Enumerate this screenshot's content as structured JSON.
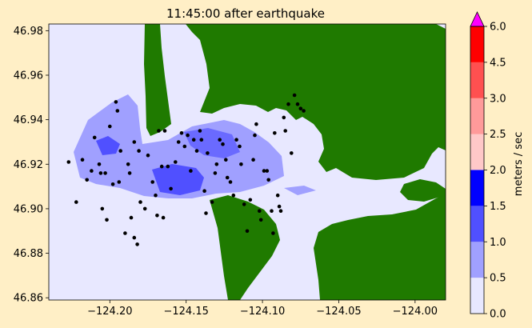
{
  "title": "11:45:00 after earthquake",
  "chart_data": {
    "type": "heatmap",
    "title": "11:45:00 after earthquake",
    "xlabel": "",
    "ylabel": "",
    "xlim": [
      -124.24,
      -123.98
    ],
    "ylim": [
      46.859,
      46.983
    ],
    "x_ticks": [
      -124.2,
      -124.15,
      -124.1,
      -124.05,
      -124.0
    ],
    "x_tick_labels": [
      "−124.20",
      "−124.15",
      "−124.10",
      "−124.05",
      "−124.00"
    ],
    "y_ticks": [
      46.86,
      46.88,
      46.9,
      46.92,
      46.94,
      46.96,
      46.98
    ],
    "y_tick_labels": [
      "46.86",
      "46.88",
      "46.90",
      "46.92",
      "46.94",
      "46.96",
      "46.98"
    ],
    "colorbar": {
      "label": "meters / sec",
      "levels": [
        0.0,
        0.5,
        1.0,
        1.5,
        2.0,
        2.5,
        3.0,
        4.5,
        6.0
      ],
      "level_labels": [
        "0.0",
        "0.5",
        "1.0",
        "1.5",
        "2.0",
        "2.5",
        "3.0",
        "4.5",
        "6.0"
      ],
      "colors": [
        "#e8e8ff",
        "#a0a0ff",
        "#5050ff",
        "#0000ff",
        "#ffc8c8",
        "#ff9a9a",
        "#ff5050",
        "#ff0000"
      ],
      "extend_color": "#ff00ff"
    },
    "land_color": "#1f7a00",
    "water_color": "#e8e8ff",
    "gauges_lonlat": [
      [
        -124.227,
        46.921
      ],
      [
        -124.222,
        46.903
      ],
      [
        -124.218,
        46.922
      ],
      [
        -124.215,
        46.913
      ],
      [
        -124.212,
        46.917
      ],
      [
        -124.21,
        46.932
      ],
      [
        -124.207,
        46.92
      ],
      [
        -124.206,
        46.916
      ],
      [
        -124.203,
        46.916
      ],
      [
        -124.205,
        46.9
      ],
      [
        -124.202,
        46.895
      ],
      [
        -124.2,
        46.937
      ],
      [
        -124.198,
        46.911
      ],
      [
        -124.196,
        46.948
      ],
      [
        -124.195,
        46.944
      ],
      [
        -124.194,
        46.912
      ],
      [
        -124.193,
        46.926
      ],
      [
        -124.19,
        46.889
      ],
      [
        -124.188,
        46.92
      ],
      [
        -124.187,
        46.916
      ],
      [
        -124.186,
        46.896
      ],
      [
        -124.184,
        46.887
      ],
      [
        -124.182,
        46.884
      ],
      [
        -124.184,
        46.93
      ],
      [
        -124.181,
        46.926
      ],
      [
        -124.18,
        46.903
      ],
      [
        -124.177,
        46.9
      ],
      [
        -124.175,
        46.924
      ],
      [
        -124.172,
        46.912
      ],
      [
        -124.17,
        46.906
      ],
      [
        -124.169,
        46.897
      ],
      [
        -124.168,
        46.935
      ],
      [
        -124.166,
        46.919
      ],
      [
        -124.165,
        46.896
      ],
      [
        -124.164,
        46.935
      ],
      [
        -124.162,
        46.919
      ],
      [
        -124.16,
        46.909
      ],
      [
        -124.157,
        46.921
      ],
      [
        -124.155,
        46.93
      ],
      [
        -124.153,
        46.934
      ],
      [
        -124.151,
        46.928
      ],
      [
        -124.149,
        46.933
      ],
      [
        -124.147,
        46.917
      ],
      [
        -124.145,
        46.931
      ],
      [
        -124.143,
        46.926
      ],
      [
        -124.141,
        46.935
      ],
      [
        -124.14,
        46.931
      ],
      [
        -124.138,
        46.908
      ],
      [
        -124.137,
        46.898
      ],
      [
        -124.136,
        46.925
      ],
      [
        -124.133,
        46.903
      ],
      [
        -124.131,
        46.916
      ],
      [
        -124.13,
        46.92
      ],
      [
        -124.128,
        46.931
      ],
      [
        -124.126,
        46.929
      ],
      [
        -124.124,
        46.922
      ],
      [
        -124.123,
        46.914
      ],
      [
        -124.121,
        46.912
      ],
      [
        -124.119,
        46.906
      ],
      [
        -124.117,
        46.931
      ],
      [
        -124.115,
        46.928
      ],
      [
        -124.114,
        46.92
      ],
      [
        -124.112,
        46.902
      ],
      [
        -124.11,
        46.89
      ],
      [
        -124.108,
        46.904
      ],
      [
        -124.106,
        46.922
      ],
      [
        -124.105,
        46.933
      ],
      [
        -124.104,
        46.938
      ],
      [
        -124.102,
        46.899
      ],
      [
        -124.101,
        46.895
      ],
      [
        -124.099,
        46.917
      ],
      [
        -124.097,
        46.917
      ],
      [
        -124.096,
        46.913
      ],
      [
        -124.094,
        46.899
      ],
      [
        -124.093,
        46.889
      ],
      [
        -124.092,
        46.934
      ],
      [
        -124.09,
        46.906
      ],
      [
        -124.089,
        46.901
      ],
      [
        -124.088,
        46.899
      ],
      [
        -124.086,
        46.941
      ],
      [
        -124.085,
        46.935
      ],
      [
        -124.083,
        46.947
      ],
      [
        -124.081,
        46.925
      ],
      [
        -124.079,
        46.951
      ],
      [
        -124.077,
        46.947
      ],
      [
        -124.075,
        46.945
      ],
      [
        -124.073,
        46.944
      ]
    ]
  }
}
